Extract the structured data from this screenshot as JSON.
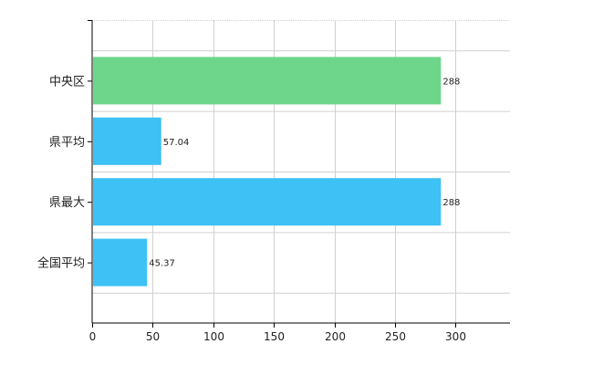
{
  "chart_data": {
    "type": "bar",
    "orientation": "horizontal",
    "categories": [
      "中央区",
      "県平均",
      "県最大",
      "全国平均"
    ],
    "values": [
      288,
      57.04,
      288,
      45.37
    ],
    "data_labels": [
      "288",
      "57.04",
      "288",
      "45.37"
    ],
    "bar_colors": [
      "#6dd68b",
      "#3ec1f4",
      "#3ec1f4",
      "#3ec1f4"
    ],
    "xlim": [
      0,
      345
    ],
    "xticks": [
      0,
      50,
      100,
      150,
      200,
      250,
      300
    ],
    "grid": true,
    "legend": "none"
  }
}
